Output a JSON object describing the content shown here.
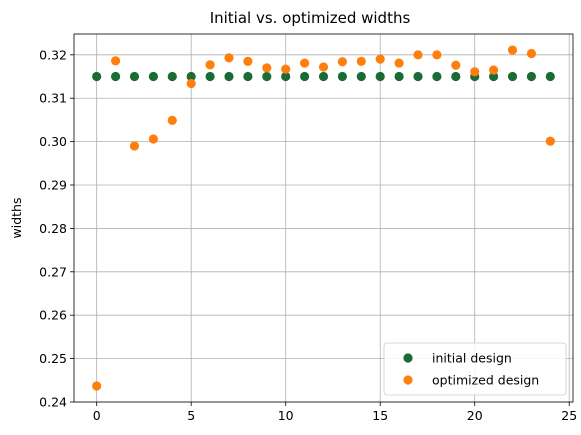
{
  "chart_data": {
    "type": "scatter",
    "title": "Initial vs. optimized widths",
    "xlabel": "",
    "ylabel": "widths",
    "xlim": [
      -1.2,
      25.2
    ],
    "ylim": [
      0.24,
      0.3248
    ],
    "x_ticks": [
      0,
      5,
      10,
      15,
      20,
      25
    ],
    "y_ticks": [
      0.24,
      0.25,
      0.26,
      0.27,
      0.28,
      0.29,
      0.3,
      0.31,
      0.32
    ],
    "y_tick_labels": [
      "0.24",
      "0.25",
      "0.26",
      "0.27",
      "0.28",
      "0.29",
      "0.30",
      "0.31",
      "0.32"
    ],
    "grid": true,
    "legend_position": "lower-right",
    "series": [
      {
        "name": "initial design",
        "color": "#1b6b36",
        "x": [
          0,
          1,
          2,
          3,
          4,
          5,
          6,
          7,
          8,
          9,
          10,
          11,
          12,
          13,
          14,
          15,
          16,
          17,
          18,
          19,
          20,
          21,
          22,
          23,
          24
        ],
        "y": [
          0.315,
          0.315,
          0.315,
          0.315,
          0.315,
          0.315,
          0.315,
          0.315,
          0.315,
          0.315,
          0.315,
          0.315,
          0.315,
          0.315,
          0.315,
          0.315,
          0.315,
          0.315,
          0.315,
          0.315,
          0.315,
          0.315,
          0.315,
          0.315,
          0.315
        ]
      },
      {
        "name": "optimized design",
        "color": "#ff7f0e",
        "x": [
          0,
          1,
          2,
          3,
          4,
          5,
          6,
          7,
          8,
          9,
          10,
          11,
          12,
          13,
          14,
          15,
          16,
          17,
          18,
          19,
          20,
          21,
          22,
          23,
          24
        ],
        "y": [
          0.2437,
          0.3186,
          0.299,
          0.3006,
          0.3049,
          0.3134,
          0.3177,
          0.3193,
          0.3185,
          0.317,
          0.3167,
          0.3181,
          0.3172,
          0.3184,
          0.3185,
          0.319,
          0.3181,
          0.32,
          0.32,
          0.3176,
          0.3161,
          0.3165,
          0.3211,
          0.3203,
          0.3001
        ]
      }
    ]
  }
}
